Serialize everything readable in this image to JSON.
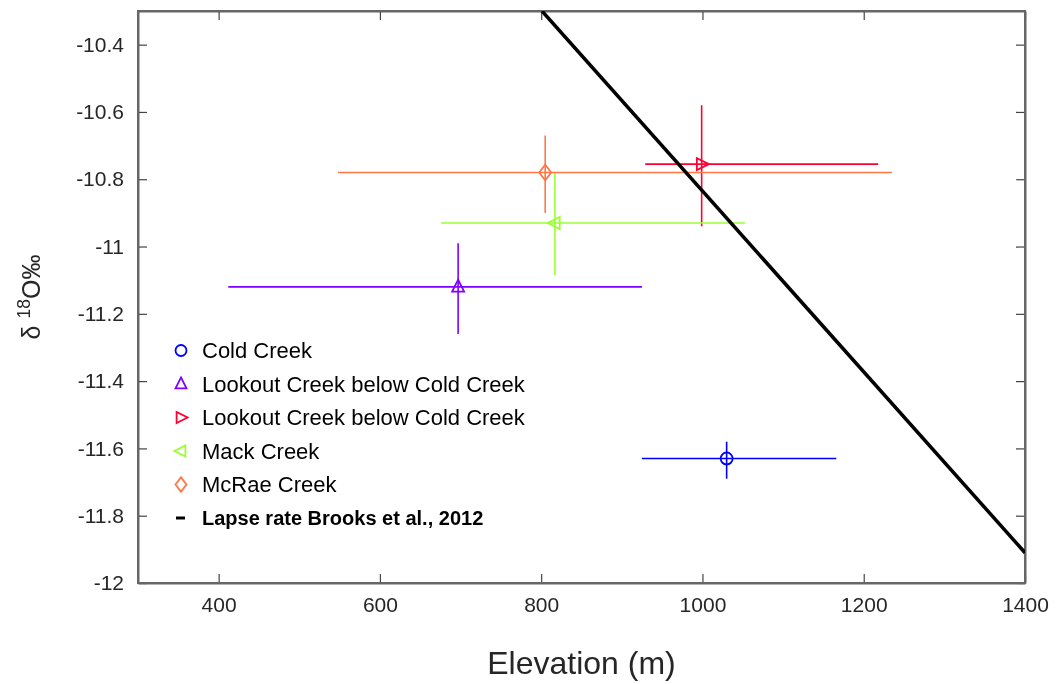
{
  "chart_data": {
    "type": "scatter",
    "xlabel": "Elevation (m)",
    "ylabel": "δ $^{18}$O‰",
    "xlim": [
      300,
      1400
    ],
    "xticks": [
      400,
      600,
      800,
      1000,
      1200,
      1400
    ],
    "ylim": [
      -12,
      -10.3
    ],
    "yticks": [
      -12,
      -11.8,
      -11.6,
      -11.4,
      -11.2,
      -11,
      -10.8,
      -10.6,
      -10.4
    ],
    "legend": "bottom left",
    "grid": false,
    "series": [
      {
        "name": "Cold Creek",
        "color": "#0000ff",
        "marker": "circle",
        "x": [
          1030
        ],
        "values": [
          -11.63
        ],
        "errors": [
          [
            -11.69,
            -11.58
          ]
        ],
        "xerrors": [
          [
            925,
            1166
          ]
        ]
      },
      {
        "name": "Lookout Creek below Cold Creek",
        "color": "#7f00ff",
        "marker": "triangle",
        "x": [
          697
        ],
        "values": [
          -11.12
        ],
        "errors": [
          [
            -11.26,
            -10.99
          ]
        ],
        "xerrors": [
          [
            412,
            925
          ]
        ]
      },
      {
        "name": "Lookout Creek below Cold Creek",
        "color": "#ff0033",
        "marker": "triangle-right",
        "x": [
          999
        ],
        "values": [
          -10.755
        ],
        "errors": [
          [
            -10.94,
            -10.58
          ]
        ],
        "xerrors": [
          [
            929,
            1218
          ]
        ]
      },
      {
        "name": "Mack Creek",
        "color": "#99ff33",
        "marker": "triangle-left",
        "x": [
          817
        ],
        "values": [
          -10.93
        ],
        "errors": [
          [
            -11.085,
            -10.78
          ]
        ],
        "xerrors": [
          [
            676,
            1053
          ]
        ]
      },
      {
        "name": "McRae Creek",
        "color": "#ff7744",
        "marker": "diamond",
        "x": [
          805
        ],
        "values": [
          -10.78
        ],
        "errors": [
          [
            -10.9,
            -10.67
          ]
        ],
        "xerrors": [
          [
            548,
            1235
          ]
        ]
      },
      {
        "name": "Lapse rate Brooks et al., 2012",
        "type": "line",
        "color": "#000000",
        "marker": "none",
        "line_style": "solid",
        "x": [
          801,
          1400
        ],
        "values": [
          -10.3,
          -11.91
        ]
      }
    ]
  }
}
